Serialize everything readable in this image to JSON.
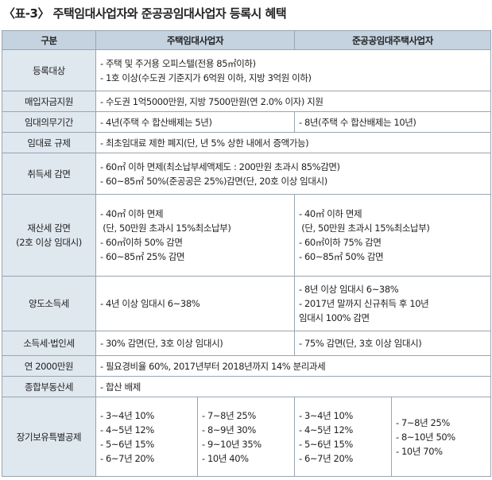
{
  "header": {
    "title": "〈표-3〉 주택임대사업자와 준공공임대사업자 등록시 혜택"
  },
  "table": {
    "columns": [
      "구분",
      "주택임대사업자",
      "준공공임대주택사업자"
    ],
    "rows": [
      {
        "label": [
          "등록대상"
        ],
        "cells": [
          [
            "- 주택 및 주거용 오피스텔(전용 85㎡이하)",
            "- 1호 이상(수도권 기준지가 6억원 이하, 지방 3억원 이하)"
          ]
        ]
      },
      {
        "label": [
          "매입자금지원"
        ],
        "cells": [
          [
            "- 수도권 1억5000만원, 지방 7500만원(연 2.0% 이자) 지원"
          ]
        ]
      },
      {
        "label": [
          "임대의무기간"
        ],
        "cells": [
          [
            "- 4년(주택 수 합산배제는 5년)"
          ],
          [
            "- 8년(주택 수 합산배제는 10년)"
          ]
        ]
      },
      {
        "label": [
          "임대료 규제"
        ],
        "cells": [
          [
            "- 최초임대료 제한 폐지(단, 년 5% 상한 내에서 증액가능)"
          ]
        ]
      },
      {
        "label": [
          "취득세 감면"
        ],
        "cells": [
          [
            "- 60㎡ 이하 면제(최소납부세액제도 : 200만원 초과시 85%감면)",
            "- 60~85㎡ 50%(준공공은 25%)감면(단, 20호 이상 임대시)"
          ]
        ]
      },
      {
        "label": [
          "재산세 감면",
          "(2호 이상 임대시)"
        ],
        "cells": [
          [
            "- 40㎡ 이하 면제",
            " (단, 50만원 초과시 15%최소납부)",
            "- 60㎡이하 50% 감면",
            "- 60~85㎡ 25% 감면"
          ],
          [
            "- 40㎡ 이하 면제",
            " (단, 50만원 초과시 15%최소납부)",
            "- 60㎡이하 75% 감면",
            "- 60~85㎡ 50% 감면"
          ]
        ]
      },
      {
        "label": [
          "양도소득세"
        ],
        "cells": [
          [
            "- 4년 이상 임대시 6~38%"
          ],
          [
            "- 8년 이상 임대시 6~38%",
            "- 2017년 말까지 신규취득 후 10년",
            "임대시 100% 감면"
          ]
        ]
      },
      {
        "label": [
          "소득세·법인세"
        ],
        "cells": [
          [
            "- 30% 감면(단, 3호 이상 임대시)"
          ],
          [
            "- 75% 감면(단, 3호 이상 임대시)"
          ]
        ]
      },
      {
        "label": [
          "연 2000만원"
        ],
        "cells": [
          [
            "- 필요경비율 60%, 2017년부터 2018년까지 14% 분리과세"
          ]
        ]
      },
      {
        "label": [
          "종합부동산세"
        ],
        "cells": [
          [
            "- 합산 배제"
          ]
        ]
      },
      {
        "label": [
          "장기보유특별공제"
        ],
        "cells": [
          [
            "- 3~4년 10%",
            "- 4~5년 12%",
            "- 5~6년 15%",
            "- 6~7년 20%"
          ],
          [
            "- 7~8년 25%",
            "- 8~9년 30%",
            "- 9~10년 35%",
            "- 10년 40%"
          ],
          [
            "- 3~4년 10%",
            "- 4~5년 12%",
            "- 5~6년 15%",
            "- 6~7년 20%"
          ],
          [
            "- 7~8년 25%",
            "- 8~10년 50%",
            "- 10년 70%"
          ]
        ]
      }
    ]
  }
}
